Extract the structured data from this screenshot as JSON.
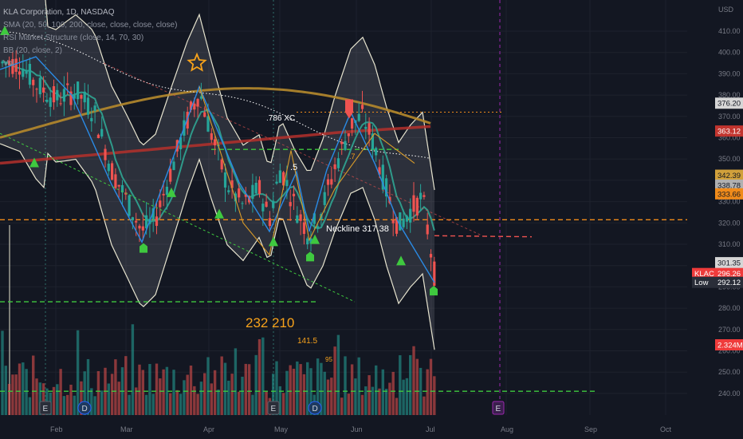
{
  "legend": {
    "title": "KLA Corporation, 1D, NASDAQ",
    "lines": [
      "SMA (20, 50, 100, 200, close, close, close, close)",
      "RSI Market Structure (close, 14, 70, 30)",
      "BB (20, close, 2)",
      "Vol"
    ]
  },
  "chart_data": {
    "type": "candlestick",
    "currency": "USD",
    "x_ticks": [
      "Feb",
      "Mar",
      "Apr",
      "May",
      "Jun",
      "Jul",
      "Aug",
      "Sep",
      "Oct"
    ],
    "y_ticks": [
      240,
      250,
      260,
      270,
      280,
      290,
      300,
      310,
      320,
      330,
      340,
      350,
      360,
      370,
      380,
      390,
      400,
      410
    ],
    "ylim": [
      233,
      418
    ],
    "price_labels": [
      {
        "text": "376.20",
        "value": 376.2,
        "color": "#d6d6d6"
      },
      {
        "text": "363.12",
        "value": 363.12,
        "color": "#c2352f"
      },
      {
        "text": "342.39",
        "value": 342.39,
        "color": "#d1a03b"
      },
      {
        "text": "338.78",
        "value": 338.78,
        "color": "#b0b0b0"
      },
      {
        "text": "333.66",
        "value": 333.66,
        "color": "#f08b1a"
      },
      {
        "text": "301.35",
        "value": 301.35,
        "color": "#d6d6d6"
      },
      {
        "text": "296.26",
        "value": 296.26,
        "color": "#ef3b3b",
        "tag": "KLAC"
      },
      {
        "text": "292.12",
        "value": 292.12,
        "color": "#2a2e39",
        "tag": "Low"
      },
      {
        "text": "2.324M",
        "value": 2.324,
        "color": "#ef3b3b"
      }
    ],
    "annotations": [
      {
        "text": "Neckline 317.38",
        "color": "#ffffff"
      },
      {
        "text": ".786 XC",
        "color": "#ffffff"
      },
      {
        "text": ".5",
        "color": "#ffffff"
      },
      {
        "text": "232",
        "color": "#f7a21b"
      },
      {
        "text": "210",
        "color": "#f7a21b"
      },
      {
        "text": "141.5",
        "color": "#f7a21b"
      },
      {
        "text": "95",
        "color": "#f7a21b"
      },
      {
        "text": ".7",
        "color": "#f7a21b"
      }
    ],
    "horizontal_levels": [
      {
        "value": 321.5,
        "color": "#f08b1a",
        "style": "dashed"
      },
      {
        "value": 354.5,
        "color": "#3fc93f",
        "style": "dashed"
      },
      {
        "value": 283,
        "color": "#3fc93f",
        "style": "dashed"
      },
      {
        "value": 241,
        "color": "#3fc93f",
        "style": "dashed"
      },
      {
        "value": 372,
        "color": "#f08b1a",
        "style": "dotted"
      }
    ],
    "events": [
      "E",
      "D",
      "E",
      "D",
      "E"
    ]
  }
}
